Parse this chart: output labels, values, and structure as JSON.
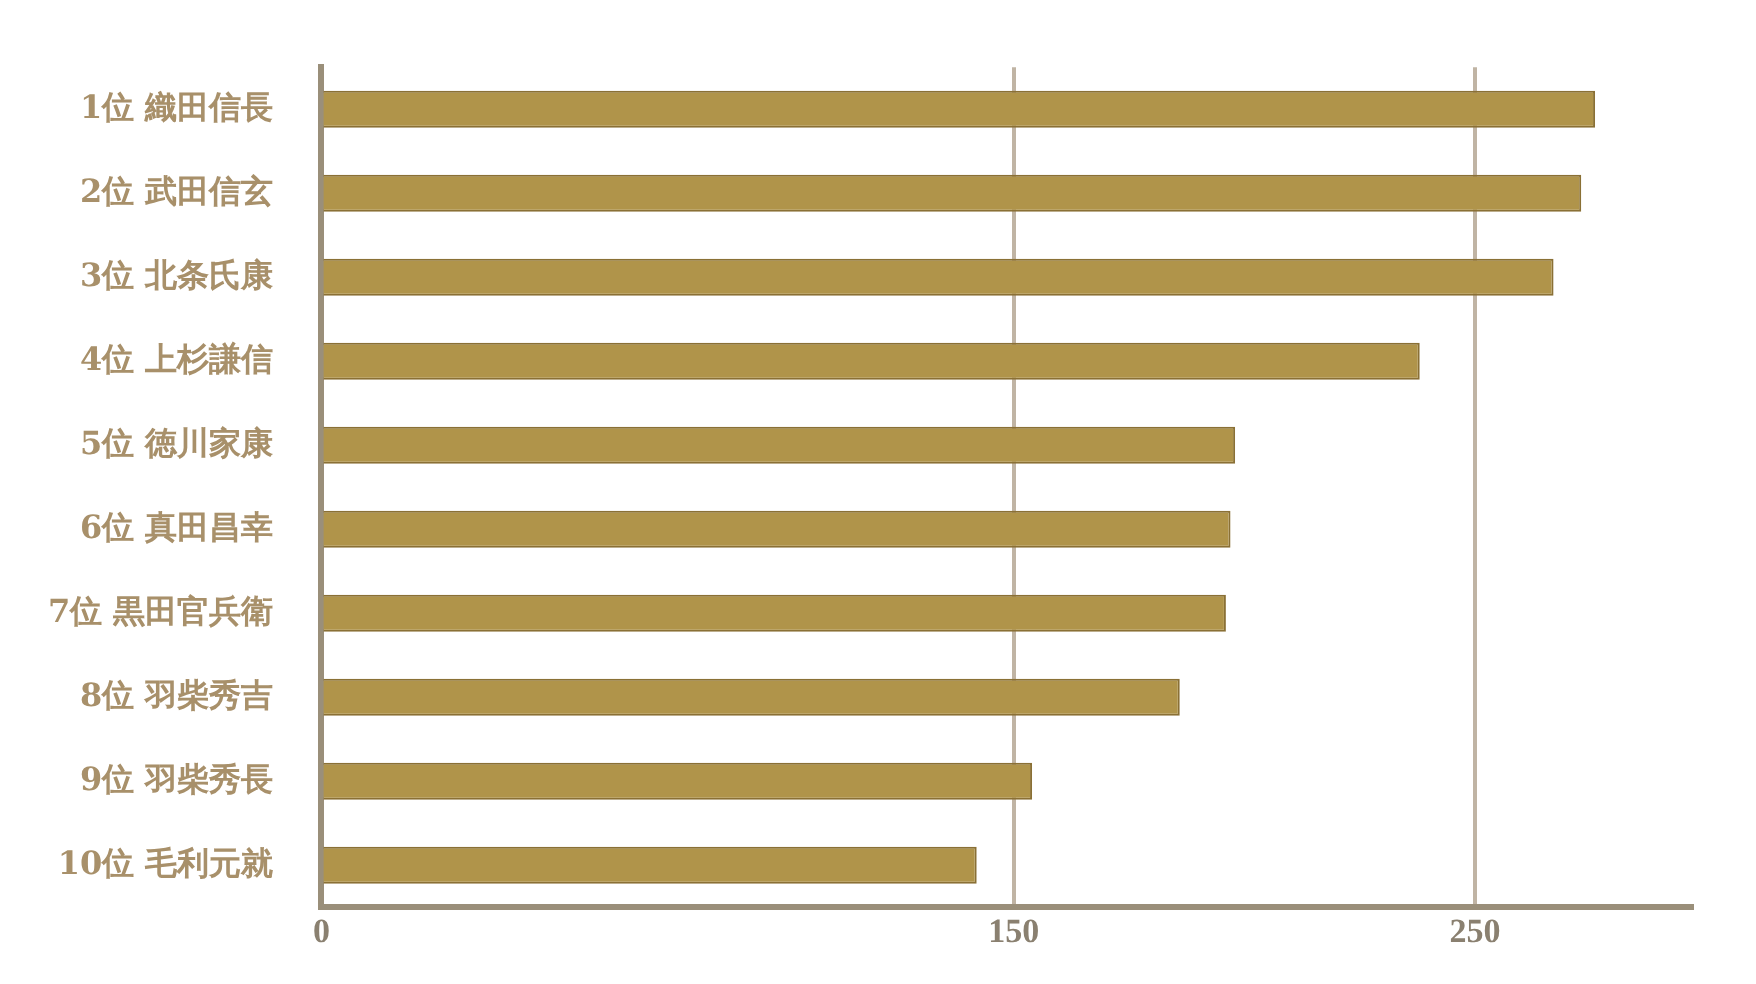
{
  "chart_data": {
    "type": "bar",
    "orientation": "horizontal",
    "categories": [
      "1位 織田信長",
      "2位 武田信玄",
      "3位 北条氏康",
      "4位 上杉謙信",
      "5位 徳川家康",
      "6位 真田昌幸",
      "7位 黒田官兵衛",
      "8位 羽柴秀吉",
      "9位 羽柴秀長",
      "10位 毛利元就"
    ],
    "values": [
      276,
      273,
      267,
      238,
      198,
      197,
      196,
      186,
      154,
      142
    ],
    "color": "#b0944a",
    "xlim": [
      0,
      297
    ],
    "xticks": [
      0,
      150,
      250
    ],
    "grid": "x",
    "legend": false
  }
}
